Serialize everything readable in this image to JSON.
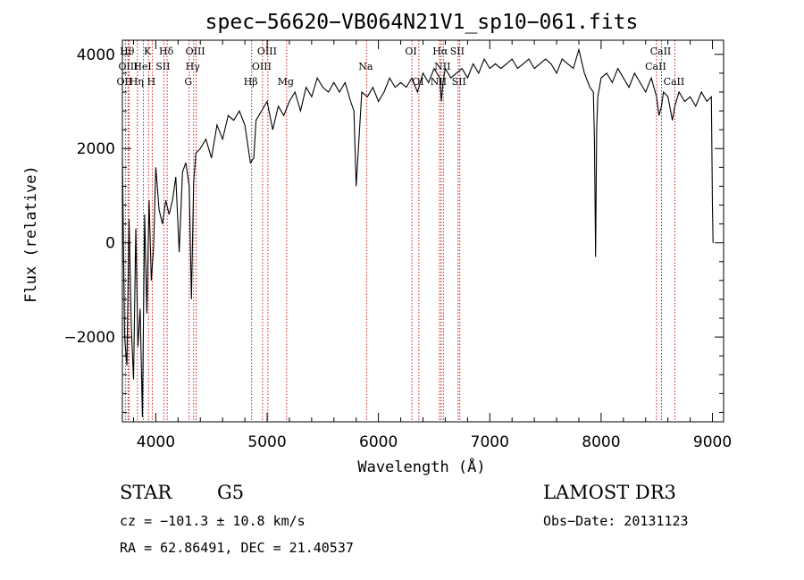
{
  "chart_data": {
    "type": "line",
    "title": "spec−56620−VB064N21V1_sp10−061.fits",
    "xlabel": "Wavelength (Å)",
    "ylabel": "Flux (relative)",
    "xlim": [
      3700,
      9100
    ],
    "ylim": [
      -3800,
      4300
    ],
    "x_ticks": [
      {
        "value": 4000,
        "label": "4000"
      },
      {
        "value": 5000,
        "label": "5000"
      },
      {
        "value": 6000,
        "label": "6000"
      },
      {
        "value": 7000,
        "label": "7000"
      },
      {
        "value": 8000,
        "label": "8000"
      },
      {
        "value": 9000,
        "label": "9000"
      }
    ],
    "y_ticks": [
      {
        "value": -2000,
        "label": "−2000"
      },
      {
        "value": 0,
        "label": "0"
      },
      {
        "value": 2000,
        "label": "2000"
      },
      {
        "value": 4000,
        "label": "4000"
      }
    ],
    "series": [
      {
        "name": "flux",
        "x": [
          3700,
          3720,
          3740,
          3760,
          3780,
          3800,
          3820,
          3840,
          3860,
          3880,
          3900,
          3920,
          3940,
          3960,
          3980,
          4000,
          4030,
          4060,
          4090,
          4120,
          4150,
          4180,
          4210,
          4240,
          4270,
          4300,
          4320,
          4340,
          4360,
          4400,
          4450,
          4500,
          4550,
          4600,
          4650,
          4700,
          4750,
          4800,
          4850,
          4880,
          4900,
          4950,
          5000,
          5050,
          5100,
          5150,
          5200,
          5250,
          5300,
          5350,
          5400,
          5450,
          5500,
          5550,
          5600,
          5650,
          5700,
          5750,
          5780,
          5800,
          5820,
          5850,
          5900,
          5950,
          6000,
          6050,
          6100,
          6150,
          6200,
          6250,
          6300,
          6350,
          6400,
          6450,
          6500,
          6550,
          6565,
          6580,
          6600,
          6650,
          6700,
          6750,
          6800,
          6850,
          6900,
          6950,
          7000,
          7050,
          7100,
          7150,
          7200,
          7250,
          7300,
          7350,
          7400,
          7450,
          7500,
          7550,
          7600,
          7650,
          7700,
          7750,
          7800,
          7850,
          7900,
          7930,
          7940,
          7950,
          7960,
          7970,
          8000,
          8050,
          8100,
          8150,
          8200,
          8250,
          8300,
          8350,
          8400,
          8450,
          8498,
          8520,
          8542,
          8560,
          8600,
          8640,
          8662,
          8700,
          8750,
          8800,
          8850,
          8900,
          8950,
          8990,
          9000,
          9005
        ],
        "y": [
          1800,
          -2000,
          -2600,
          500,
          -1800,
          -2900,
          300,
          -2200,
          -1400,
          -3700,
          600,
          -1500,
          900,
          -800,
          -100,
          1600,
          700,
          400,
          900,
          600,
          900,
          1400,
          -200,
          1500,
          1700,
          1200,
          -1200,
          1300,
          1900,
          2000,
          2200,
          1800,
          2500,
          2200,
          2700,
          2600,
          2800,
          2500,
          1700,
          1800,
          2600,
          2800,
          3000,
          2400,
          2900,
          2700,
          3000,
          3200,
          2800,
          3300,
          3100,
          3500,
          3300,
          3200,
          3400,
          3200,
          3400,
          3000,
          2800,
          1200,
          2000,
          3200,
          3100,
          3300,
          3000,
          3200,
          3500,
          3300,
          3400,
          3300,
          3500,
          3200,
          3600,
          3400,
          3700,
          3500,
          3000,
          3400,
          3700,
          3500,
          3600,
          3700,
          3500,
          3800,
          3600,
          3900,
          3700,
          3800,
          3700,
          3800,
          3900,
          3700,
          3800,
          3900,
          3700,
          3800,
          3900,
          3800,
          3600,
          3900,
          3800,
          3700,
          4100,
          3600,
          3300,
          3200,
          2200,
          -300,
          2400,
          3100,
          3500,
          3600,
          3400,
          3700,
          3500,
          3300,
          3600,
          3400,
          3200,
          3500,
          3100,
          2700,
          2900,
          3200,
          3100,
          2600,
          2900,
          3200,
          3000,
          3100,
          2900,
          3200,
          3000,
          3100,
          800,
          0
        ]
      }
    ],
    "line_markers": [
      {
        "label": "OII",
        "wavelength": 3727,
        "row": 2
      },
      {
        "label": "Hθ",
        "wavelength": 3750,
        "row": 0
      },
      {
        "label": "OIII",
        "wavelength": 3760,
        "row": 1
      },
      {
        "label": "Hη",
        "wavelength": 3835,
        "row": 2
      },
      {
        "label": "HeI",
        "wavelength": 3889,
        "row": 1
      },
      {
        "label": "K",
        "wavelength": 3934,
        "row": 0
      },
      {
        "label": "H",
        "wavelength": 3968,
        "row": 2
      },
      {
        "label": "SII",
        "wavelength": 4072,
        "row": 1
      },
      {
        "label": "Hδ",
        "wavelength": 4102,
        "row": 0
      },
      {
        "label": "G",
        "wavelength": 4300,
        "row": 2
      },
      {
        "label": "Hγ",
        "wavelength": 4340,
        "row": 1
      },
      {
        "label": "OIII",
        "wavelength": 4363,
        "row": 0
      },
      {
        "label": "Hβ",
        "wavelength": 4861,
        "row": 2
      },
      {
        "label": "OIII",
        "wavelength": 4959,
        "row": 1
      },
      {
        "label": "OIII",
        "wavelength": 5007,
        "row": 0
      },
      {
        "label": "Mg",
        "wavelength": 5175,
        "row": 2
      },
      {
        "label": "Na",
        "wavelength": 5893,
        "row": 1
      },
      {
        "label": "OI",
        "wavelength": 6300,
        "row": 0
      },
      {
        "label": "OI",
        "wavelength": 6363,
        "row": 2
      },
      {
        "label": "NII",
        "wavelength": 6548,
        "row": 2
      },
      {
        "label": "Hα",
        "wavelength": 6563,
        "row": 0
      },
      {
        "label": "NII",
        "wavelength": 6583,
        "row": 1
      },
      {
        "label": "SII",
        "wavelength": 6716,
        "row": 0
      },
      {
        "label": "SII",
        "wavelength": 6731,
        "row": 2
      },
      {
        "label": "CaII",
        "wavelength": 8498,
        "row": 1
      },
      {
        "label": "CaII",
        "wavelength": 8542,
        "row": 0
      },
      {
        "label": "CaII",
        "wavelength": 8662,
        "row": 2
      }
    ],
    "colors": {
      "spectrum": "#000000",
      "markers": "#cc0000",
      "axes": "#000000"
    }
  },
  "info": {
    "object_class": "STAR",
    "subclass": "G5",
    "survey": "LAMOST DR3",
    "redshift": "cz = −101.3 ± 10.8 km/s",
    "obs_date": "Obs−Date: 20131123",
    "coords": "RA =  62.86491, DEC =  21.40537"
  }
}
